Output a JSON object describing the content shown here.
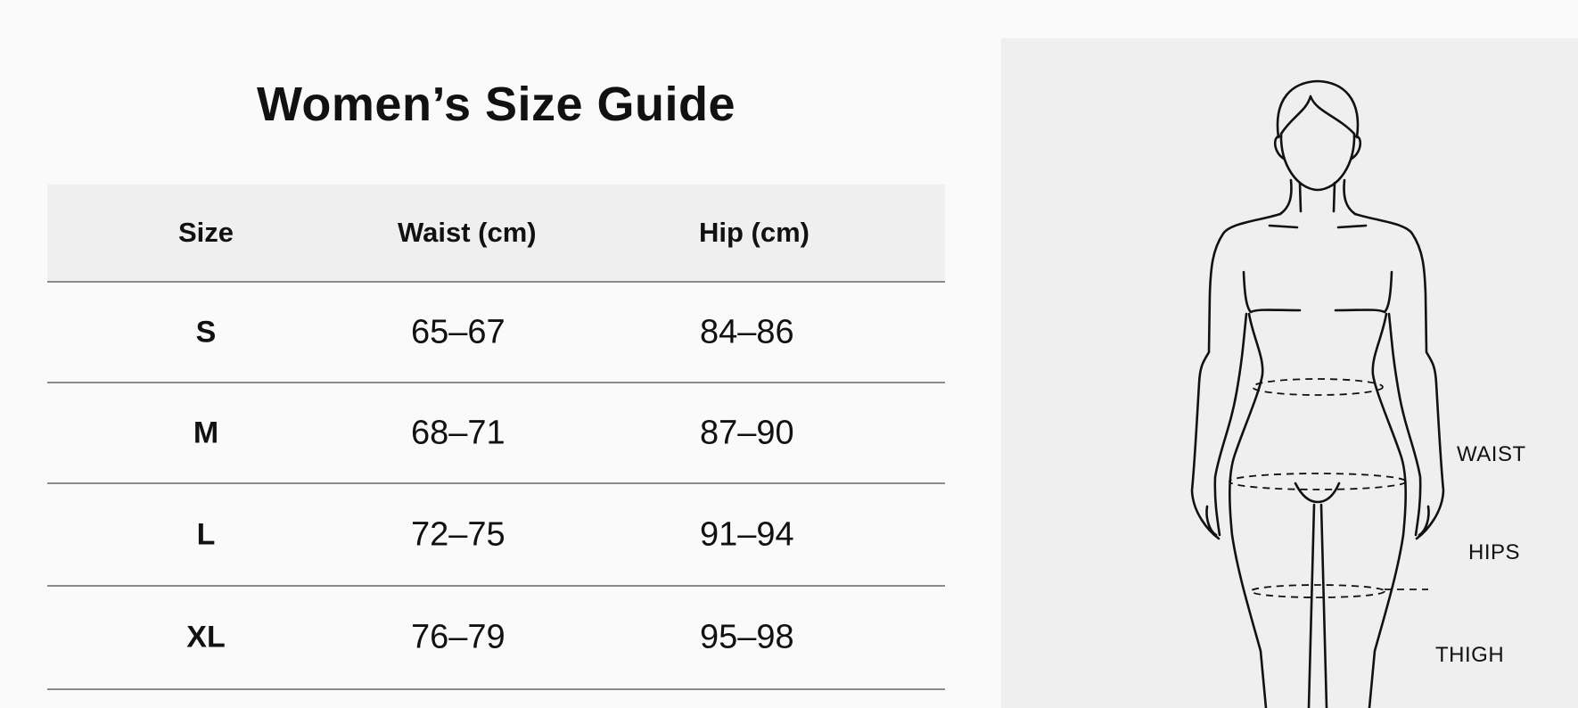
{
  "title": "Women’s Size Guide",
  "table": {
    "headers": [
      "Size",
      "Waist (cm)",
      "Hip (cm)"
    ],
    "rows": [
      [
        "S",
        "65–67",
        "84–86"
      ],
      [
        "M",
        "68–71",
        "87–90"
      ],
      [
        "L",
        "72–75",
        "91–94"
      ],
      [
        "XL",
        "76–79",
        "95–98"
      ]
    ]
  },
  "figure": {
    "labels": {
      "waist": "WAIST",
      "hips": "HIPS",
      "thigh": "THIGH"
    }
  },
  "colors": {
    "header_bg": "#efefef",
    "panel_bg": "#f0efef",
    "line": "#8a8a8a"
  }
}
